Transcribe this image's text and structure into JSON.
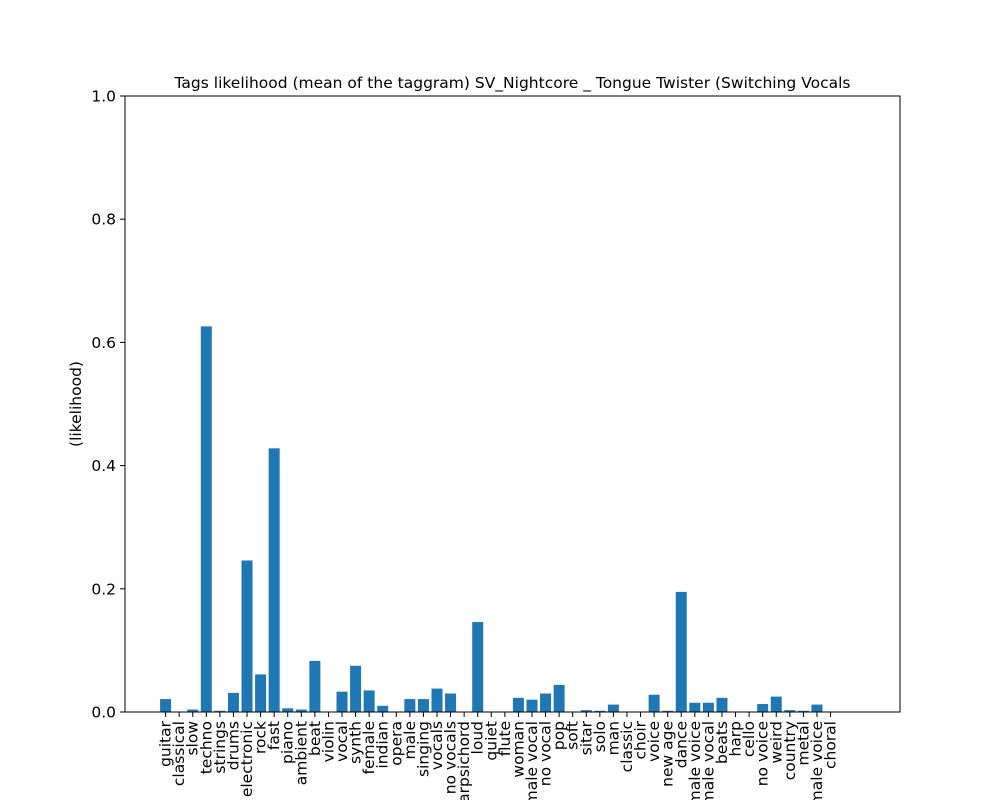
{
  "chart_data": {
    "type": "bar",
    "title": "Tags likelihood (mean of the taggram) SV_Nightcore _ Tongue Twister (Switching Vocals",
    "xlabel": "",
    "ylabel": "(likelihood)",
    "ylim": [
      0,
      1.0
    ],
    "yticks": [
      "0.0",
      "0.2",
      "0.4",
      "0.6",
      "0.8",
      "1.0"
    ],
    "grid": false,
    "bar_color": "#1f77b4",
    "categories": [
      "guitar",
      "classical",
      "slow",
      "techno",
      "strings",
      "drums",
      "electronic",
      "rock",
      "fast",
      "piano",
      "ambient",
      "beat",
      "violin",
      "vocal",
      "synth",
      "female",
      "indian",
      "opera",
      "male",
      "singing",
      "vocals",
      "no vocals",
      "harpsichord",
      "loud",
      "quiet",
      "flute",
      "woman",
      "male vocal",
      "no vocal",
      "pop",
      "soft",
      "sitar",
      "solo",
      "man",
      "classic",
      "choir",
      "voice",
      "new age",
      "dance",
      "male voice",
      "female vocal",
      "beats",
      "harp",
      "cello",
      "no voice",
      "weird",
      "country",
      "metal",
      "female voice",
      "choral"
    ],
    "values": [
      0.021,
      0.0,
      0.004,
      0.626,
      0.002,
      0.031,
      0.246,
      0.061,
      0.428,
      0.006,
      0.004,
      0.083,
      0.0,
      0.033,
      0.075,
      0.035,
      0.01,
      0.0,
      0.021,
      0.021,
      0.038,
      0.03,
      0.0,
      0.146,
      0.0,
      0.0,
      0.023,
      0.02,
      0.03,
      0.044,
      0.0,
      0.003,
      0.002,
      0.012,
      0.0,
      0.0,
      0.028,
      0.002,
      0.195,
      0.015,
      0.015,
      0.023,
      0.0,
      0.0,
      0.013,
      0.025,
      0.003,
      0.002,
      0.012,
      0.0
    ]
  }
}
